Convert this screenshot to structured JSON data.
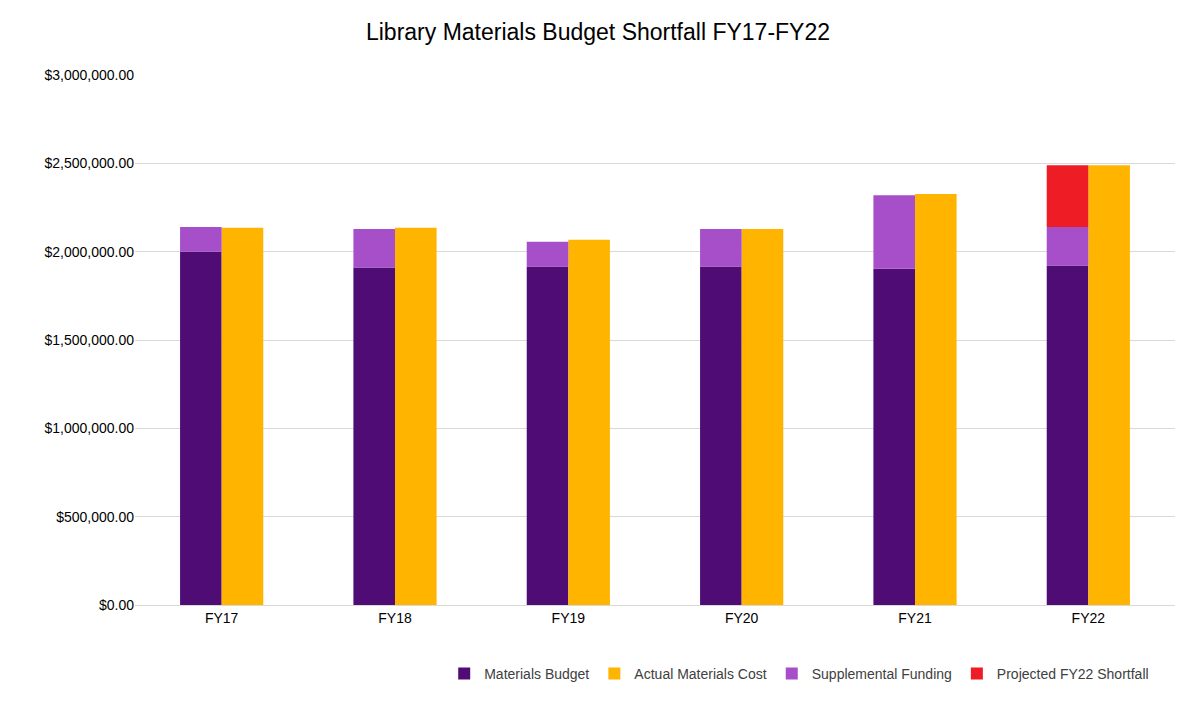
{
  "chart_data": {
    "type": "bar",
    "title": "Library Materials Budget Shortfall FY17-FY22",
    "categories": [
      "FY17",
      "FY18",
      "FY19",
      "FY20",
      "FY21",
      "FY22"
    ],
    "series": [
      {
        "name": "Materials Budget",
        "color": "#4f0c74",
        "values": [
          2000000,
          1910000,
          1916000,
          1916000,
          1904000,
          1921000
        ]
      },
      {
        "name": "Actual Materials Cost",
        "color": "#ffb400",
        "values": [
          2135000,
          2135000,
          2067000,
          2129000,
          2326000,
          2489000
        ]
      },
      {
        "name": "Supplemental Funding",
        "color": "#a64fc9",
        "values": [
          140000,
          219000,
          140000,
          213000,
          416000,
          219000
        ]
      },
      {
        "name": "Projected FY22 Shortfall",
        "color": "#ee1c25",
        "values": [
          null,
          null,
          null,
          null,
          null,
          349000
        ]
      }
    ],
    "stacked": [
      [
        "Materials Budget",
        "Supplemental Funding",
        "Projected FY22 Shortfall"
      ],
      [
        "Actual Materials Cost"
      ]
    ],
    "ylim": [
      0,
      3000000
    ],
    "yticks": [
      {
        "value": 0,
        "label": "$0.00"
      },
      {
        "value": 500000,
        "label": "$500,000.00"
      },
      {
        "value": 1000000,
        "label": "$1,000,000.00"
      },
      {
        "value": 1500000,
        "label": "$1,500,000.00"
      },
      {
        "value": 2000000,
        "label": "$2,000,000.00"
      },
      {
        "value": 2500000,
        "label": "$2,500,000.00"
      },
      {
        "value": 3000000,
        "label": "$3,000,000.00"
      }
    ],
    "grid": true,
    "legend": "bottom"
  }
}
